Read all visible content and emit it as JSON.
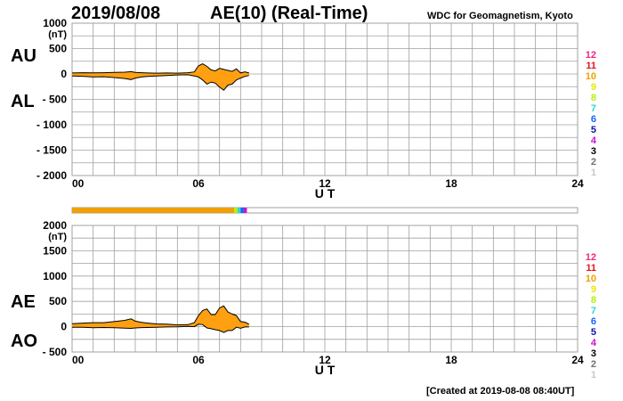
{
  "header": {
    "date": "2019/08/08",
    "title": "AE(10) (Real-Time)",
    "organization": "WDC for Geomagnetism, Kyoto"
  },
  "footer": {
    "created": "[Created at 2019-08-08 08:40UT]"
  },
  "colors": {
    "fill": "#ffa010",
    "grid": "#a0a0a0",
    "outline": "#000000",
    "legend": [
      "#f0287a",
      "#e8141e",
      "#f0a000",
      "#e8e800",
      "#b4f000",
      "#32d4d4",
      "#1464ff",
      "#1414a0",
      "#c814c8",
      "#000000",
      "#707070",
      "#c8c8c8"
    ]
  },
  "chart_data": [
    {
      "type": "area",
      "panel": "top",
      "ylabel": "(nT)",
      "left_labels": [
        "AU",
        "AL"
      ],
      "series": [
        {
          "name": "AU",
          "x": [
            0,
            0.5,
            1,
            1.5,
            2,
            2.5,
            2.8,
            3,
            3.3,
            3.6,
            4,
            4.5,
            5,
            5.5,
            5.8,
            6,
            6.2,
            6.4,
            6.6,
            6.8,
            7,
            7.2,
            7.4,
            7.6,
            7.8,
            8,
            8.2,
            8.4
          ],
          "values": [
            20,
            25,
            22,
            25,
            30,
            35,
            45,
            30,
            25,
            20,
            15,
            20,
            15,
            25,
            40,
            160,
            200,
            150,
            80,
            60,
            110,
            90,
            70,
            50,
            100,
            20,
            40,
            20
          ]
        },
        {
          "name": "AL",
          "x": [
            0,
            0.5,
            1,
            1.5,
            2,
            2.5,
            2.8,
            3,
            3.3,
            3.6,
            4,
            4.5,
            5,
            5.5,
            5.8,
            6,
            6.2,
            6.4,
            6.6,
            6.8,
            7,
            7.2,
            7.4,
            7.6,
            7.8,
            8,
            8.2,
            8.4
          ],
          "values": [
            -40,
            -45,
            -60,
            -55,
            -70,
            -90,
            -110,
            -80,
            -60,
            -50,
            -40,
            -30,
            -20,
            -15,
            -40,
            -60,
            -120,
            -200,
            -160,
            -180,
            -260,
            -320,
            -220,
            -200,
            -120,
            -80,
            -50,
            -30
          ]
        }
      ],
      "ylim": [
        -2000,
        1000
      ],
      "yticks": [
        1000,
        500,
        0,
        -500,
        -1000,
        -1500,
        -2000
      ],
      "yticks_text": [
        "1000",
        "500",
        "0",
        "- 500",
        "- 1000",
        "- 1500",
        "- 2000"
      ],
      "xlim": [
        0,
        24
      ],
      "xticks": [
        0,
        6,
        12,
        18,
        24
      ],
      "xticks_text": [
        "00",
        "06",
        "12",
        "18",
        "24"
      ],
      "xlabel": "U T",
      "legend": [
        "12",
        "11",
        "10",
        "9",
        "8",
        "7",
        "6",
        "5",
        "4",
        "3",
        "2",
        "1"
      ],
      "legend_placement": "right",
      "grid": true
    },
    {
      "type": "area",
      "panel": "bottom",
      "ylabel": "(nT)",
      "left_labels": [
        "AE",
        "AO"
      ],
      "series": [
        {
          "name": "AE",
          "x": [
            0,
            0.5,
            1,
            1.5,
            2,
            2.5,
            2.8,
            3,
            3.3,
            3.6,
            4,
            4.5,
            5,
            5.5,
            5.8,
            6,
            6.2,
            6.4,
            6.6,
            6.8,
            7,
            7.2,
            7.4,
            7.6,
            7.8,
            8,
            8.2,
            8.4
          ],
          "values": [
            60,
            70,
            80,
            80,
            100,
            125,
            155,
            110,
            85,
            70,
            55,
            50,
            35,
            40,
            80,
            220,
            320,
            350,
            240,
            240,
            370,
            410,
            290,
            250,
            220,
            100,
            90,
            50
          ]
        },
        {
          "name": "AO",
          "x": [
            0,
            0.5,
            1,
            1.5,
            2,
            2.5,
            2.8,
            3,
            3.3,
            3.6,
            4,
            4.5,
            5,
            5.5,
            5.8,
            6,
            6.2,
            6.4,
            6.6,
            6.8,
            7,
            7.2,
            7.4,
            7.6,
            7.8,
            8,
            8.2,
            8.4
          ],
          "values": [
            -10,
            -10,
            -20,
            -15,
            -20,
            -28,
            -33,
            -25,
            -18,
            -15,
            -13,
            -5,
            -3,
            5,
            0,
            50,
            40,
            -25,
            -40,
            -60,
            -75,
            -115,
            -75,
            -75,
            -10,
            -30,
            -5,
            -5
          ]
        }
      ],
      "ylim": [
        -500,
        2000
      ],
      "yticks": [
        2000,
        1500,
        1000,
        500,
        0,
        -500
      ],
      "yticks_text": [
        "2000",
        "1500",
        "1000",
        "500",
        "0",
        "- 500"
      ],
      "xlim": [
        0,
        24
      ],
      "xticks": [
        0,
        6,
        12,
        18,
        24
      ],
      "xticks_text": [
        "00",
        "06",
        "12",
        "18",
        "24"
      ],
      "xlabel": "U T",
      "legend": [
        "12",
        "11",
        "10",
        "9",
        "8",
        "7",
        "6",
        "5",
        "4",
        "3",
        "2",
        "1"
      ],
      "legend_placement": "right",
      "grid": true
    }
  ],
  "station_bar": {
    "segments": [
      {
        "from": 0,
        "to": 7.7,
        "legend": "10"
      },
      {
        "from": 7.7,
        "to": 7.85,
        "legend": "8"
      },
      {
        "from": 7.85,
        "to": 8.0,
        "legend": "7"
      },
      {
        "from": 8.0,
        "to": 8.15,
        "legend": "6"
      },
      {
        "from": 8.15,
        "to": 8.3,
        "legend": "4"
      }
    ]
  }
}
